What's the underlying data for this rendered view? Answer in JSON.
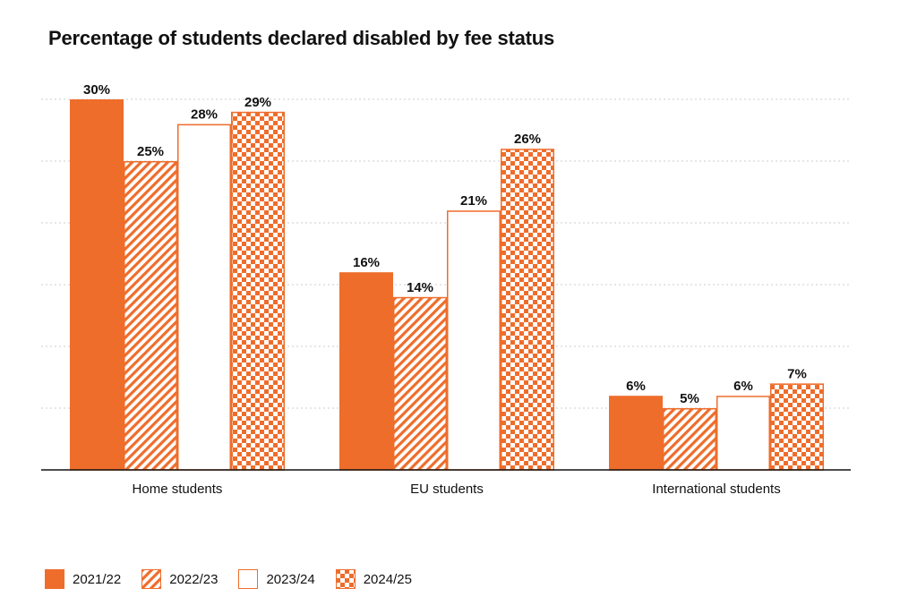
{
  "chart_data": {
    "type": "bar",
    "title": "Percentage of students declared disabled by fee status",
    "categories": [
      "Home students",
      "EU students",
      "International students"
    ],
    "series": [
      {
        "name": "2021/22",
        "values": [
          30,
          16,
          6
        ],
        "labels": [
          "30%",
          "16%",
          "6%"
        ],
        "pattern": "solid"
      },
      {
        "name": "2022/23",
        "values": [
          25,
          14,
          5
        ],
        "labels": [
          "25%",
          "14%",
          "5%"
        ],
        "pattern": "hatch"
      },
      {
        "name": "2023/24",
        "values": [
          28,
          21,
          6
        ],
        "labels": [
          "28%",
          "21%",
          "6%"
        ],
        "pattern": "outline"
      },
      {
        "name": "2024/25",
        "values": [
          29,
          26,
          7
        ],
        "labels": [
          "29%",
          "26%",
          "7%"
        ],
        "pattern": "checker"
      }
    ],
    "ylim": [
      0,
      30
    ],
    "grid": true,
    "legend": "bottom-left",
    "xlabel": "",
    "ylabel": ""
  },
  "colors": {
    "accent": "#ee6d2b",
    "text": "#111111",
    "grid": "#cccccc",
    "axis": "#111111"
  }
}
